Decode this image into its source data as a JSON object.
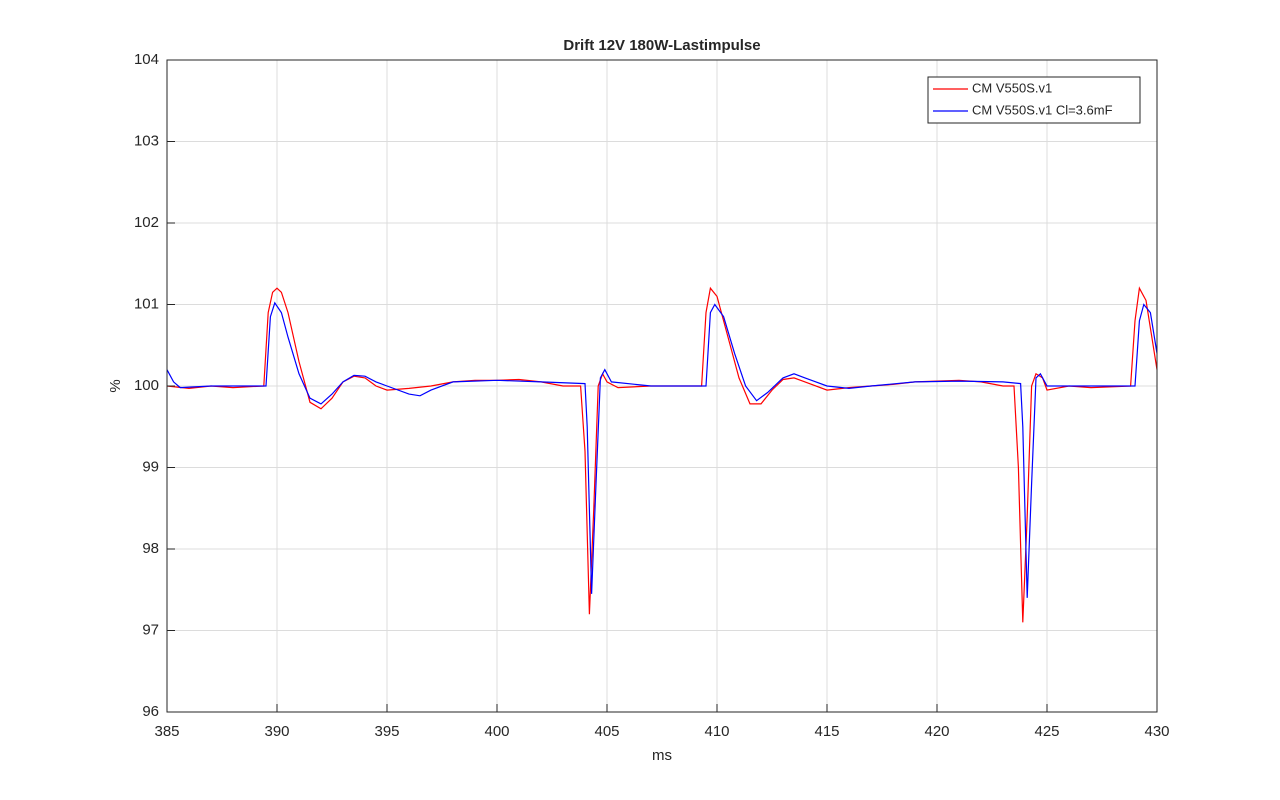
{
  "chart_data": {
    "type": "line",
    "title": "Drift 12V 180W-Lastimpulse",
    "x_label": "ms",
    "y_label": "%",
    "xlim": [
      385,
      430
    ],
    "xticks": [
      385,
      390,
      395,
      400,
      405,
      410,
      415,
      420,
      425,
      430
    ],
    "ylim": [
      96,
      104
    ],
    "yticks": [
      96,
      97,
      98,
      99,
      100,
      101,
      102,
      103,
      104
    ],
    "grid": true,
    "legend": "top-right",
    "series": [
      {
        "name": "CM V550S.v1",
        "color": "#ff0000",
        "x": [
          385,
          386,
          387,
          388,
          389.4,
          389.6,
          389.8,
          390.0,
          390.2,
          390.5,
          391.0,
          391.5,
          392.0,
          392.5,
          393.0,
          393.5,
          394.0,
          394.5,
          395.0,
          396.0,
          397.0,
          398.0,
          399.0,
          400.0,
          401.0,
          402.0,
          403.0,
          403.8,
          404.0,
          404.2,
          404.4,
          404.6,
          404.8,
          405.0,
          405.5,
          407.0,
          409.3,
          409.5,
          409.7,
          410.0,
          410.5,
          411.0,
          411.5,
          412.0,
          412.5,
          413.0,
          413.5,
          414.0,
          415.0,
          416.0,
          417.0,
          418.0,
          419.0,
          420.0,
          421.0,
          422.0,
          423.0,
          423.5,
          423.7,
          423.9,
          424.1,
          424.3,
          424.5,
          424.8,
          425.0,
          426.0,
          427.0,
          428.8,
          429.0,
          429.2,
          429.5,
          430.0
        ],
        "values": [
          100.0,
          99.97,
          100.0,
          99.98,
          100.0,
          100.9,
          101.15,
          101.2,
          101.15,
          100.9,
          100.3,
          99.8,
          99.72,
          99.85,
          100.05,
          100.12,
          100.1,
          100.0,
          99.95,
          99.97,
          100.0,
          100.05,
          100.07,
          100.07,
          100.08,
          100.05,
          100.0,
          100.0,
          99.2,
          97.2,
          98.5,
          100.0,
          100.15,
          100.05,
          99.98,
          100.0,
          100.0,
          100.9,
          101.2,
          101.1,
          100.6,
          100.1,
          99.78,
          99.78,
          99.95,
          100.08,
          100.1,
          100.05,
          99.95,
          99.98,
          100.0,
          100.02,
          100.05,
          100.06,
          100.07,
          100.05,
          100.0,
          100.0,
          99.0,
          97.1,
          98.4,
          100.0,
          100.15,
          100.1,
          99.95,
          100.0,
          99.98,
          100.0,
          100.8,
          101.2,
          101.05,
          100.2
        ]
      },
      {
        "name": "CM V550S.v1 Cl=3.6mF",
        "color": "#0000ff",
        "x": [
          385,
          385.3,
          385.6,
          387,
          389.5,
          389.7,
          389.9,
          390.2,
          390.5,
          391.0,
          391.5,
          392.0,
          392.5,
          393.0,
          393.5,
          394.0,
          394.5,
          395.0,
          396.0,
          396.5,
          397.0,
          398.0,
          400.0,
          402.0,
          404.0,
          404.1,
          404.3,
          404.5,
          404.7,
          404.9,
          405.2,
          407.0,
          409.5,
          409.7,
          409.9,
          410.3,
          410.8,
          411.3,
          411.8,
          412.3,
          413.0,
          413.5,
          414.0,
          415.0,
          416.0,
          417.0,
          419.0,
          421.0,
          423.0,
          423.8,
          423.9,
          424.1,
          424.3,
          424.5,
          424.7,
          425.0,
          426.0,
          429.0,
          429.2,
          429.4,
          429.7,
          430.0
        ],
        "values": [
          100.2,
          100.05,
          99.98,
          100.0,
          100.0,
          100.85,
          101.02,
          100.9,
          100.6,
          100.15,
          99.85,
          99.78,
          99.9,
          100.05,
          100.13,
          100.12,
          100.05,
          100.0,
          99.9,
          99.88,
          99.95,
          100.05,
          100.07,
          100.05,
          100.03,
          99.5,
          97.45,
          98.8,
          100.1,
          100.2,
          100.05,
          100.0,
          100.0,
          100.9,
          101.0,
          100.85,
          100.4,
          100.0,
          99.82,
          99.92,
          100.1,
          100.15,
          100.1,
          100.0,
          99.97,
          100.0,
          100.05,
          100.06,
          100.05,
          100.03,
          99.5,
          97.4,
          98.8,
          100.1,
          100.15,
          100.0,
          100.0,
          100.0,
          100.8,
          101.0,
          100.9,
          100.4
        ]
      }
    ]
  }
}
